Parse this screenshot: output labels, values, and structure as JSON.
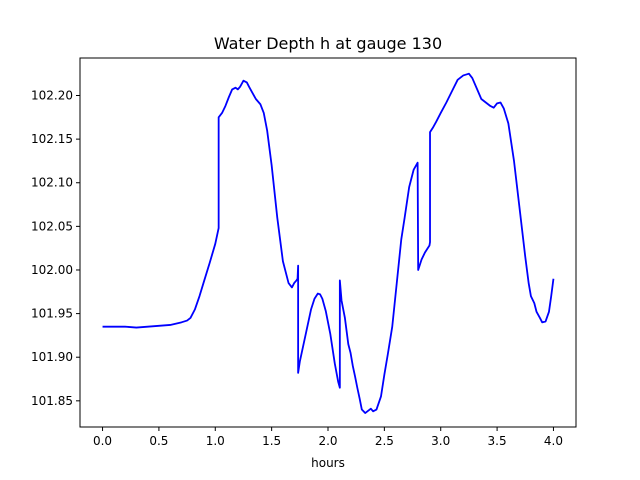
{
  "chart_data": {
    "type": "line",
    "title": "Water Depth h at gauge 130",
    "xlabel": "hours",
    "ylabel": "",
    "xlim": [
      -0.2,
      4.2
    ],
    "ylim": [
      101.82,
      102.243
    ],
    "xticks": [
      0.0,
      0.5,
      1.0,
      1.5,
      2.0,
      2.5,
      3.0,
      3.5,
      4.0
    ],
    "xtick_labels": [
      "0.0",
      "0.5",
      "1.0",
      "1.5",
      "2.0",
      "2.5",
      "3.0",
      "3.5",
      "4.0"
    ],
    "yticks": [
      101.85,
      101.9,
      101.95,
      102.0,
      102.05,
      102.1,
      102.15,
      102.2
    ],
    "ytick_labels": [
      "101.85",
      "101.90",
      "101.95",
      "102.00",
      "102.05",
      "102.10",
      "102.15",
      "102.20"
    ],
    "grid": false,
    "legend": "none",
    "series": [
      {
        "color": "#0000ff",
        "x": [
          0.0,
          0.1,
          0.2,
          0.3,
          0.4,
          0.5,
          0.6,
          0.7,
          0.75,
          0.78,
          0.82,
          0.86,
          0.9,
          0.95,
          1.0,
          1.03,
          1.03,
          1.06,
          1.09,
          1.12,
          1.15,
          1.18,
          1.2,
          1.22,
          1.25,
          1.28,
          1.3,
          1.33,
          1.36,
          1.4,
          1.43,
          1.46,
          1.5,
          1.55,
          1.6,
          1.65,
          1.68,
          1.7,
          1.72,
          1.73,
          1.735,
          1.735,
          1.75,
          1.8,
          1.85,
          1.88,
          1.91,
          1.93,
          1.95,
          1.98,
          2.02,
          2.06,
          2.09,
          2.105,
          2.105,
          2.12,
          2.15,
          2.17,
          2.18,
          2.2,
          2.22,
          2.24,
          2.26,
          2.28,
          2.3,
          2.33,
          2.36,
          2.38,
          2.4,
          2.43,
          2.47,
          2.5,
          2.53,
          2.57,
          2.61,
          2.65,
          2.68,
          2.72,
          2.76,
          2.795,
          2.8,
          2.8,
          2.83,
          2.86,
          2.9,
          2.905,
          2.905,
          2.93,
          2.96,
          3.0,
          3.05,
          3.1,
          3.15,
          3.2,
          3.25,
          3.28,
          3.32,
          3.36,
          3.4,
          3.44,
          3.47,
          3.5,
          3.53,
          3.56,
          3.6,
          3.65,
          3.7,
          3.75,
          3.78,
          3.8,
          3.83,
          3.85,
          3.88,
          3.9,
          3.93,
          3.96,
          3.98,
          4.0
        ],
        "y": [
          101.935,
          101.935,
          101.935,
          101.934,
          101.935,
          101.936,
          101.937,
          101.94,
          101.942,
          101.945,
          101.955,
          101.97,
          101.987,
          102.008,
          102.03,
          102.048,
          102.175,
          102.18,
          102.188,
          102.198,
          102.207,
          102.209,
          102.207,
          102.21,
          102.217,
          102.215,
          102.21,
          102.203,
          102.196,
          102.19,
          102.18,
          102.16,
          102.12,
          102.06,
          102.01,
          101.985,
          101.98,
          101.985,
          101.988,
          101.99,
          102.005,
          101.882,
          101.895,
          101.925,
          101.955,
          101.967,
          101.973,
          101.972,
          101.967,
          101.953,
          101.927,
          101.893,
          101.872,
          101.865,
          101.988,
          101.965,
          101.945,
          101.925,
          101.915,
          101.905,
          101.89,
          101.878,
          101.865,
          101.853,
          101.84,
          101.836,
          101.839,
          101.841,
          101.838,
          101.84,
          101.855,
          101.88,
          101.903,
          101.935,
          101.985,
          102.035,
          102.06,
          102.095,
          102.115,
          102.123,
          102.0,
          102.0,
          102.012,
          102.02,
          102.028,
          102.032,
          102.158,
          102.163,
          102.17,
          102.18,
          102.192,
          102.205,
          102.218,
          102.223,
          102.225,
          102.22,
          102.208,
          102.196,
          102.192,
          102.188,
          102.186,
          102.191,
          102.192,
          102.185,
          102.168,
          102.125,
          102.07,
          102.015,
          101.985,
          101.97,
          101.962,
          101.952,
          101.945,
          101.94,
          101.941,
          101.952,
          101.97,
          101.99
        ]
      }
    ]
  }
}
